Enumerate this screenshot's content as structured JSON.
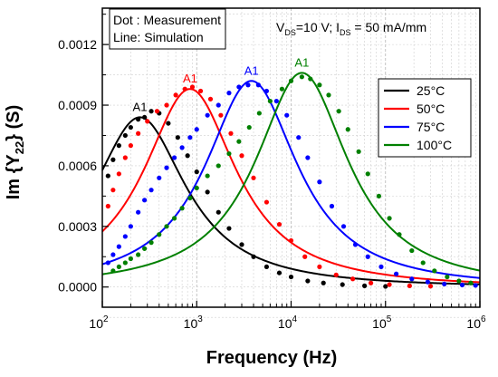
{
  "chart_data": {
    "type": "line",
    "ylabel_main": "Im {Y",
    "ylabel_sub": "22",
    "ylabel_tail": "} (S)",
    "xlabel": "Frequency (Hz)",
    "xscale": "log",
    "xlim": [
      100,
      1000000
    ],
    "ylim": [
      -0.0001,
      0.00138
    ],
    "x_ticks": [
      {
        "value": 100,
        "base": "10",
        "exp": "2"
      },
      {
        "value": 1000,
        "base": "10",
        "exp": "3"
      },
      {
        "value": 10000,
        "base": "10",
        "exp": "4"
      },
      {
        "value": 100000,
        "base": "10",
        "exp": "5"
      },
      {
        "value": 1000000,
        "base": "10",
        "exp": "6"
      }
    ],
    "y_ticks": [
      {
        "value": 0.0,
        "label": "0.0000"
      },
      {
        "value": 0.0003,
        "label": "0.0003"
      },
      {
        "value": 0.0006,
        "label": "0.0006"
      },
      {
        "value": 0.0009,
        "label": "0.0009"
      },
      {
        "value": 0.0012,
        "label": "0.0012"
      }
    ],
    "grid": true,
    "annotation": {
      "line1": "Dot : Measurement",
      "line2": "Line: Simulation"
    },
    "bias": {
      "v": "V",
      "v_sub": "DS",
      "v_val": "=10 V; ",
      "i": "I",
      "i_sub": "DS",
      "i_val": " = 50 mA/mm"
    },
    "legend_placement": "right",
    "series": [
      {
        "name": "25°C",
        "color": "#000000",
        "peak_label": "A1",
        "simulation": {
          "fpeak": 250,
          "peak": 0.00084,
          "width": 0.6
        },
        "measurement_points": [
          [
            115,
            0.00055
          ],
          [
            130,
            0.00063
          ],
          [
            150,
            0.0007
          ],
          [
            175,
            0.00075
          ],
          [
            200,
            0.00079
          ],
          [
            240,
            0.00083
          ],
          [
            280,
            0.00084
          ],
          [
            330,
            0.00087
          ],
          [
            400,
            0.00086
          ],
          [
            500,
            0.00081
          ],
          [
            630,
            0.00074
          ],
          [
            800,
            0.00065
          ],
          [
            1000,
            0.00057
          ],
          [
            1300,
            0.00047
          ],
          [
            1700,
            0.00037
          ],
          [
            2200,
            0.00029
          ],
          [
            3000,
            0.00021
          ],
          [
            4000,
            0.00015
          ],
          [
            5500,
            0.0001
          ],
          [
            7500,
            7e-05
          ],
          [
            10000,
            5e-05
          ],
          [
            15000,
            3e-05
          ],
          [
            22000,
            2e-05
          ],
          [
            35000,
            1.2e-05
          ],
          [
            60000,
            6e-06
          ],
          [
            100000,
            3e-06
          ]
        ]
      },
      {
        "name": "50°C",
        "color": "#ff0000",
        "peak_label": "A1",
        "simulation": {
          "fpeak": 850,
          "peak": 0.00098,
          "width": 0.6
        },
        "measurement_points": [
          [
            115,
            0.0004
          ],
          [
            130,
            0.00048
          ],
          [
            150,
            0.00056
          ],
          [
            175,
            0.00064
          ],
          [
            200,
            0.0007
          ],
          [
            240,
            0.00076
          ],
          [
            300,
            0.00082
          ],
          [
            380,
            0.00087
          ],
          [
            480,
            0.0009
          ],
          [
            600,
            0.00095
          ],
          [
            750,
            0.00098
          ],
          [
            900,
            0.00099
          ],
          [
            1100,
            0.00097
          ],
          [
            1400,
            0.00093
          ],
          [
            1800,
            0.00085
          ],
          [
            2300,
            0.00076
          ],
          [
            3000,
            0.00065
          ],
          [
            4000,
            0.00054
          ],
          [
            5500,
            0.00042
          ],
          [
            7500,
            0.00031
          ],
          [
            10000,
            0.00023
          ],
          [
            14000,
            0.00015
          ],
          [
            20000,
            0.0001
          ],
          [
            30000,
            6e-05
          ],
          [
            45000,
            4e-05
          ],
          [
            70000,
            2e-05
          ],
          [
            110000,
            1.2e-05
          ],
          [
            180000,
            6e-06
          ],
          [
            300000,
            4e-06
          ]
        ]
      },
      {
        "name": "75°C",
        "color": "#0000ff",
        "peak_label": "A1",
        "simulation": {
          "fpeak": 3800,
          "peak": 0.00102,
          "width": 0.6
        },
        "measurement_points": [
          [
            115,
            0.00012
          ],
          [
            130,
            0.00016
          ],
          [
            150,
            0.0002
          ],
          [
            175,
            0.00025
          ],
          [
            200,
            0.0003
          ],
          [
            240,
            0.00037
          ],
          [
            280,
            0.00043
          ],
          [
            330,
            0.00048
          ],
          [
            400,
            0.00054
          ],
          [
            480,
            0.00059
          ],
          [
            580,
            0.00064
          ],
          [
            700,
            0.00069
          ],
          [
            850,
            0.00074
          ],
          [
            1000,
            0.00078
          ],
          [
            1300,
            0.00085
          ],
          [
            1700,
            0.0009
          ],
          [
            2200,
            0.00096
          ],
          [
            2800,
            0.00099
          ],
          [
            3500,
            0.001
          ],
          [
            4500,
            0.001
          ],
          [
            5500,
            0.00097
          ],
          [
            7000,
            0.00092
          ],
          [
            9000,
            0.00085
          ],
          [
            12000,
            0.00074
          ],
          [
            15000,
            0.00064
          ],
          [
            20000,
            0.00052
          ],
          [
            27000,
            0.0004
          ],
          [
            36000,
            0.0003
          ],
          [
            48000,
            0.00021
          ],
          [
            65000,
            0.00015
          ],
          [
            90000,
            0.0001
          ],
          [
            130000,
            6.5e-05
          ],
          [
            190000,
            4e-05
          ],
          [
            280000,
            2.5e-05
          ],
          [
            420000,
            1.5e-05
          ],
          [
            650000,
            1e-05
          ],
          [
            900000,
            8e-06
          ]
        ]
      },
      {
        "name": "100°C",
        "color": "#008000",
        "peak_label": "A1",
        "simulation": {
          "fpeak": 13000,
          "peak": 0.00106,
          "width": 0.6
        },
        "measurement_points": [
          [
            130,
            8e-05
          ],
          [
            150,
            0.0001
          ],
          [
            175,
            0.00012
          ],
          [
            200,
            0.00014
          ],
          [
            240,
            0.00016
          ],
          [
            280,
            0.00019
          ],
          [
            330,
            0.00022
          ],
          [
            400,
            0.00026
          ],
          [
            480,
            0.0003
          ],
          [
            580,
            0.00034
          ],
          [
            700,
            0.00039
          ],
          [
            850,
            0.00044
          ],
          [
            1000,
            0.00049
          ],
          [
            1300,
            0.00055
          ],
          [
            1700,
            0.0006
          ],
          [
            2200,
            0.00066
          ],
          [
            2800,
            0.00072
          ],
          [
            3600,
            0.00079
          ],
          [
            4600,
            0.00086
          ],
          [
            6000,
            0.00092
          ],
          [
            8000,
            0.00098
          ],
          [
            10000,
            0.00102
          ],
          [
            13000,
            0.00104
          ],
          [
            16000,
            0.00103
          ],
          [
            20000,
            0.001
          ],
          [
            25000,
            0.00095
          ],
          [
            32000,
            0.00087
          ],
          [
            40000,
            0.00078
          ],
          [
            52000,
            0.00067
          ],
          [
            65000,
            0.00056
          ],
          [
            85000,
            0.00045
          ],
          [
            110000,
            0.00034
          ],
          [
            140000,
            0.00026
          ],
          [
            190000,
            0.00018
          ],
          [
            250000,
            0.00012
          ],
          [
            330000,
            8e-05
          ],
          [
            450000,
            5e-05
          ],
          [
            600000,
            3e-05
          ],
          [
            800000,
            2e-05
          ]
        ]
      }
    ]
  }
}
